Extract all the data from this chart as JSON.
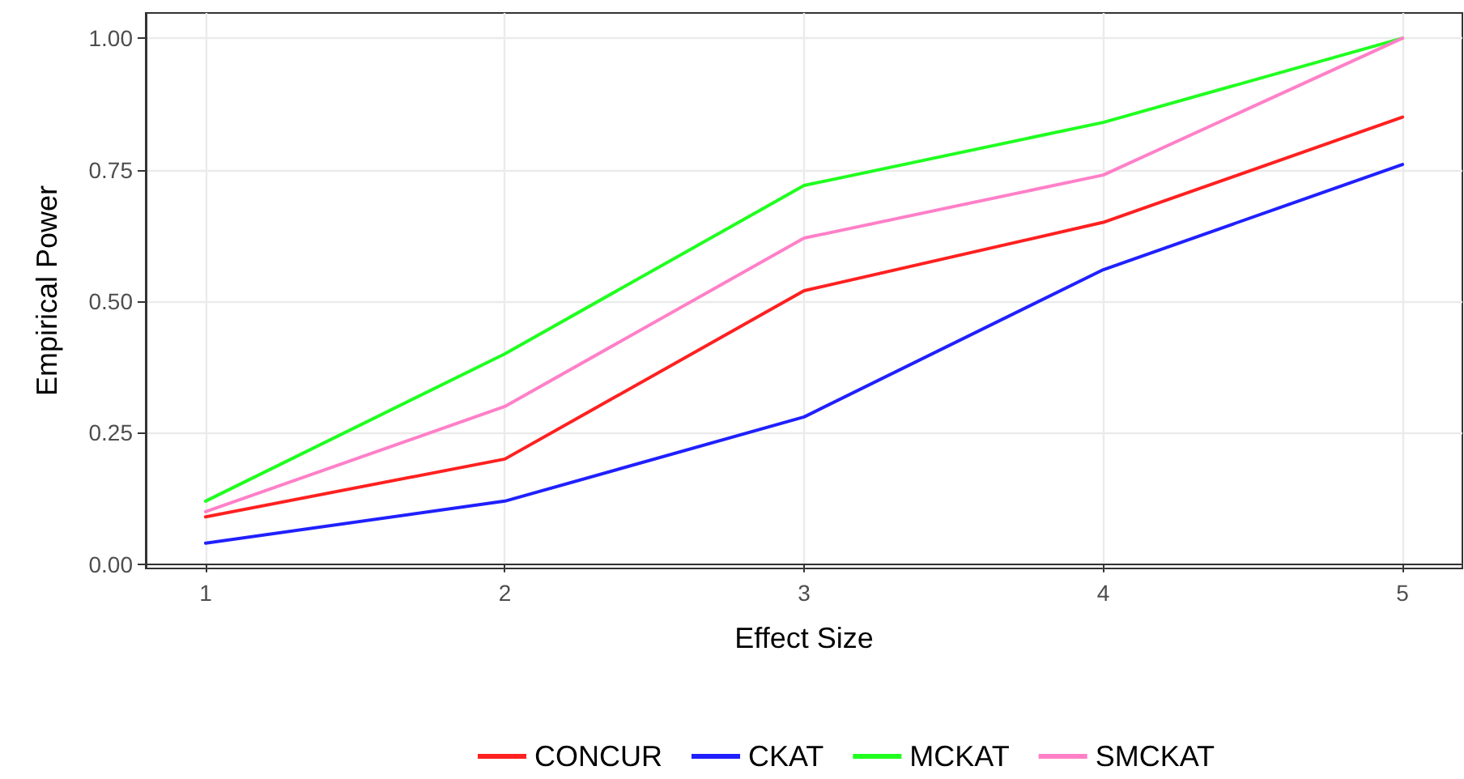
{
  "chart_data": {
    "type": "line",
    "xlabel": "Effect Size",
    "ylabel": "Empirical Power",
    "x": [
      1,
      2,
      3,
      4,
      5
    ],
    "series": [
      {
        "name": "CONCUR",
        "color": "#ff2020",
        "values": [
          0.09,
          0.2,
          0.52,
          0.65,
          0.85
        ]
      },
      {
        "name": "CKAT",
        "color": "#2020ff",
        "values": [
          0.04,
          0.12,
          0.28,
          0.56,
          0.76
        ]
      },
      {
        "name": "MCKAT",
        "color": "#20ff20",
        "values": [
          0.12,
          0.4,
          0.72,
          0.84,
          1.0
        ]
      },
      {
        "name": "SMCKAT",
        "color": "#ff80c8",
        "values": [
          0.1,
          0.3,
          0.62,
          0.74,
          1.0
        ]
      }
    ],
    "xlim": [
      0.8,
      5.2
    ],
    "xticks": [
      1,
      2,
      3,
      4,
      5
    ],
    "ylim": [
      -0.008,
      1.048
    ],
    "yticks": [
      {
        "value": 0,
        "label": "0.00"
      },
      {
        "value": 0.25,
        "label": "0.25"
      },
      {
        "value": 0.5,
        "label": "0.50"
      },
      {
        "value": 0.75,
        "label": "0.75"
      },
      {
        "value": 1,
        "label": "1.00"
      }
    ],
    "grid": true,
    "legend": "bottom",
    "marker": "none",
    "line_style": "solid"
  }
}
